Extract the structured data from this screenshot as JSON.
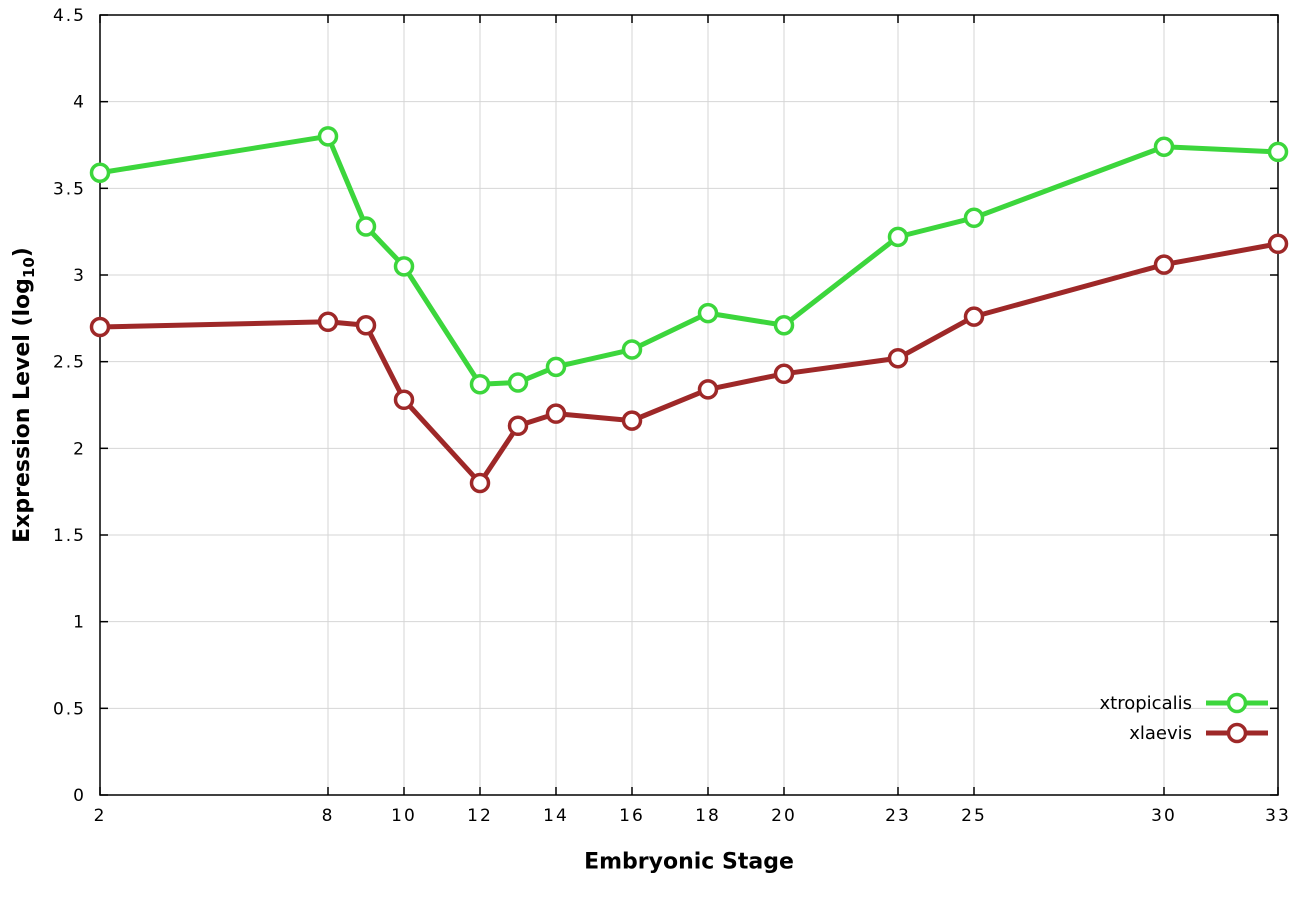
{
  "chart_data": {
    "type": "line",
    "title": "",
    "xlabel": "Embryonic Stage",
    "ylabel": "Expression Level (log10)",
    "ylabel_parts": {
      "pre": "Expression Level (log",
      "sub": "10",
      "post": ")"
    },
    "xlim": [
      2,
      33
    ],
    "ylim": [
      0,
      4.5
    ],
    "x_ticks": [
      2,
      8,
      10,
      12,
      14,
      16,
      18,
      20,
      23,
      25,
      30,
      33
    ],
    "y_ticks": [
      0,
      0.5,
      1,
      1.5,
      2,
      2.5,
      3,
      3.5,
      4,
      4.5
    ],
    "grid": true,
    "legend_position": "bottom-right",
    "background_color": "#ffffff",
    "grid_color": "#d6d6d6",
    "axis_color": "#000000",
    "x": [
      2,
      8,
      9,
      10,
      12,
      13,
      14,
      16,
      18,
      20,
      23,
      25,
      30,
      33
    ],
    "series": [
      {
        "name": "xtropicalis",
        "color": "#3cd63c",
        "values": [
          3.59,
          3.8,
          3.28,
          3.05,
          2.37,
          2.38,
          2.47,
          2.57,
          2.78,
          2.71,
          3.22,
          3.33,
          3.74,
          3.71
        ]
      },
      {
        "name": "xlaevis",
        "color": "#9e2828",
        "values": [
          2.7,
          2.73,
          2.71,
          2.28,
          1.8,
          2.13,
          2.2,
          2.16,
          2.34,
          2.43,
          2.52,
          2.76,
          3.06,
          3.18
        ]
      }
    ]
  }
}
